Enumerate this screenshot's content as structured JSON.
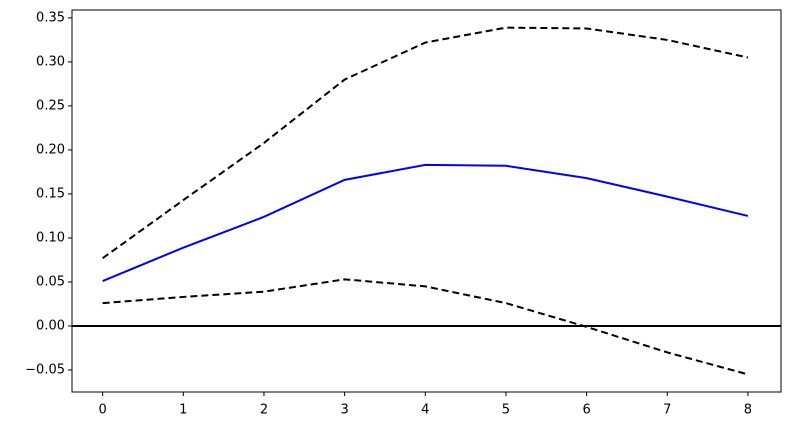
{
  "chart_data": {
    "type": "line",
    "x": [
      0,
      1,
      2,
      3,
      4,
      5,
      6,
      7,
      8
    ],
    "series": [
      {
        "color": "#0000ff",
        "dash": false,
        "values": [
          0.051,
          0.089,
          0.124,
          0.166,
          0.183,
          0.182,
          0.168,
          0.147,
          0.125
        ]
      },
      {
        "color": "#000000",
        "dash": true,
        "values": [
          0.077,
          0.143,
          0.208,
          0.28,
          0.322,
          0.339,
          0.338,
          0.325,
          0.305
        ]
      },
      {
        "color": "#000000",
        "dash": true,
        "values": [
          0.026,
          0.033,
          0.039,
          0.053,
          0.045,
          0.026,
          -0.001,
          -0.03,
          -0.055
        ]
      }
    ],
    "hline": {
      "value": 0,
      "color": "#000000"
    },
    "xlim": [
      -0.38,
      8.41
    ],
    "ylim": [
      -0.075,
      0.359
    ],
    "xticks": [
      0,
      1,
      2,
      3,
      4,
      5,
      6,
      7,
      8
    ],
    "yticks": [
      {
        "value": -0.05,
        "label": "−0.05"
      },
      {
        "value": 0,
        "label": "0.00"
      },
      {
        "value": 0.05,
        "label": "0.05"
      },
      {
        "value": 0.1,
        "label": "0.10"
      },
      {
        "value": 0.15,
        "label": "0.15"
      },
      {
        "value": 0.2,
        "label": "0.20"
      },
      {
        "value": 0.25,
        "label": "0.25"
      },
      {
        "value": 0.3,
        "label": "0.30"
      },
      {
        "value": 0.35,
        "label": "0.35"
      }
    ],
    "grid": false
  }
}
